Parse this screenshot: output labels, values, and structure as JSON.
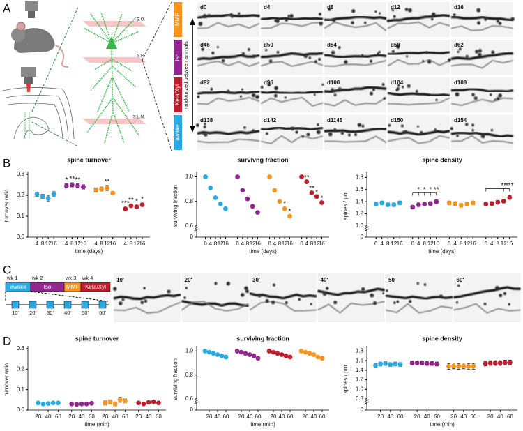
{
  "panel_labels": [
    "A",
    "B",
    "C",
    "D"
  ],
  "panel_a": {
    "layers": [
      "S.O.",
      "S.R.",
      "S.L.M."
    ],
    "conditions": [
      {
        "label": "MMF",
        "color": "#f7941d"
      },
      {
        "label": "Iso",
        "color": "#92278f"
      },
      {
        "label": "Keta/Xyl",
        "color": "#be1e2d"
      },
      {
        "label": "awake",
        "color": "#29abe2"
      }
    ],
    "arrow_label": "randomized between animals",
    "image_labels": [
      [
        "d0",
        "d4",
        "d8",
        "d12",
        "d16"
      ],
      [
        "d46",
        "d50",
        "d54",
        "d58",
        "d62"
      ],
      [
        "d92",
        "d96",
        "d100",
        "d104",
        "d108"
      ],
      [
        "d138",
        "d142",
        "d1146",
        "d150",
        "d154"
      ]
    ]
  },
  "panel_c": {
    "weeks": [
      "wk 1",
      "wk 2",
      "wk 3",
      "wk 4"
    ],
    "conditions": [
      {
        "label": "awake",
        "color": "#29abe2"
      },
      {
        "label": "Iso",
        "color": "#92278f"
      },
      {
        "label": "MMF",
        "color": "#f7941d"
      },
      {
        "label": "Keta/Xyl",
        "color": "#be1e2d"
      }
    ],
    "timepoints": [
      "10'",
      "20'",
      "30'",
      "40'",
      "50'",
      "60'"
    ],
    "image_labels": [
      "10'",
      "20'",
      "30'",
      "40'",
      "50'",
      "60'"
    ]
  },
  "chart_data": [
    {
      "type": "scatter",
      "title": "spine turnover",
      "ylabel": "turnover ratio",
      "xlabel": "time (days)",
      "x": [
        4,
        8,
        12,
        16
      ],
      "xticks": [
        4,
        8,
        12,
        16
      ],
      "xlim": [
        2,
        18
      ],
      "ylim": [
        0,
        0.3
      ],
      "yticks": [
        {
          "value": 0,
          "label": "0.0"
        },
        0.1,
        0.2,
        0.3
      ],
      "series": [
        {
          "color": "#29abe2",
          "values": [
            0.205,
            0.195,
            0.185,
            0.205
          ],
          "errors": [
            0.01,
            0.01,
            0.015,
            0.012
          ]
        },
        {
          "color": "#92278f",
          "values": [
            0.245,
            0.25,
            0.245,
            0.24
          ],
          "errors": [
            0.01,
            0.01,
            0.01,
            0.01
          ],
          "significance": [
            "*",
            "**",
            "**",
            null
          ]
        },
        {
          "color": "#f7941d",
          "values": [
            0.225,
            0.23,
            0.235,
            0.21
          ],
          "errors": [
            0.01,
            0.01,
            0.012,
            0.008
          ],
          "significance": [
            null,
            null,
            "**",
            null
          ]
        },
        {
          "color": "#be1e2d",
          "values": [
            0.135,
            0.15,
            0.145,
            0.155
          ],
          "errors": [
            0.008,
            0.008,
            0.008,
            0.008
          ],
          "significance": [
            "***",
            "**",
            "*",
            "*"
          ]
        }
      ]
    },
    {
      "type": "scatter",
      "title": "survivng fraction",
      "ylabel": "surviving fraction",
      "xlabel": "time (days)",
      "x": [
        0,
        4,
        8,
        12,
        16
      ],
      "xticks": [
        0,
        4,
        8,
        12,
        16
      ],
      "xlim": [
        -2,
        18
      ],
      "ylim": [
        0.6,
        1.02
      ],
      "yticks": [
        0.6,
        0.8,
        {
          "value": 1,
          "label": "1.0"
        }
      ],
      "break_tick": 0,
      "series": [
        {
          "color": "#29abe2",
          "values": [
            1.0,
            0.91,
            0.83,
            0.78,
            0.74
          ],
          "errors": [
            0,
            0.005,
            0.005,
            0.006,
            0.008
          ]
        },
        {
          "color": "#92278f",
          "values": [
            1.0,
            0.89,
            0.82,
            0.76,
            0.71
          ],
          "errors": [
            0,
            0.005,
            0.005,
            0.005,
            0.005
          ]
        },
        {
          "color": "#f7941d",
          "values": [
            1.0,
            0.89,
            0.8,
            0.74,
            0.68
          ],
          "errors": [
            0,
            0.01,
            0.01,
            0.01,
            0.01
          ],
          "significance": [
            null,
            null,
            null,
            "*",
            "*"
          ]
        },
        {
          "color": "#be1e2d",
          "values": [
            1.0,
            0.96,
            0.87,
            0.84,
            0.79
          ],
          "errors": [
            0,
            0.005,
            0.005,
            0.005,
            0.005
          ],
          "significance": [
            null,
            "**",
            "**",
            "*",
            "*"
          ]
        }
      ]
    },
    {
      "type": "scatter",
      "title": "spine density",
      "ylabel": "spines / µm",
      "xlabel": "time (days)",
      "x": [
        0,
        4,
        8,
        12,
        16
      ],
      "xticks": [
        0,
        4,
        8,
        12,
        16
      ],
      "xlim": [
        -2,
        18
      ],
      "ylim": [
        1.0,
        1.85
      ],
      "yticks": [
        {
          "value": 1,
          "label": "1.0"
        },
        1.2,
        1.4,
        1.6,
        1.8
      ],
      "break_tick": 0,
      "brackets": true,
      "series": [
        {
          "color": "#29abe2",
          "values": [
            1.36,
            1.38,
            1.35,
            1.35,
            1.38
          ],
          "errors": [
            0.03,
            0.03,
            0.03,
            0.03,
            0.03
          ]
        },
        {
          "color": "#92278f",
          "values": [
            1.31,
            1.35,
            1.36,
            1.37,
            1.4
          ],
          "errors": [
            0.03,
            0.03,
            0.03,
            0.03,
            0.03
          ],
          "significance": [
            null,
            "*",
            "*",
            "*",
            "**"
          ]
        },
        {
          "color": "#f7941d",
          "values": [
            1.38,
            1.37,
            1.34,
            1.36,
            1.38
          ],
          "errors": [
            0.03,
            0.03,
            0.03,
            0.03,
            0.03
          ]
        },
        {
          "color": "#be1e2d",
          "values": [
            1.36,
            1.37,
            1.39,
            1.41,
            1.47
          ],
          "errors": [
            0.03,
            0.03,
            0.03,
            0.03,
            0.03
          ],
          "significance": [
            null,
            null,
            null,
            "**",
            "***"
          ]
        }
      ]
    },
    {
      "type": "scatter",
      "title": "spine turnover",
      "ylabel": "turnover ratio",
      "xlabel": "time (min)",
      "x": [
        20,
        30,
        40,
        50,
        60
      ],
      "xticks": [
        20,
        40,
        60
      ],
      "xlim": [
        12,
        65
      ],
      "ylim": [
        0,
        0.3
      ],
      "yticks": [
        {
          "value": 0,
          "label": "0.0"
        },
        0.1,
        0.2,
        0.3
      ],
      "series": [
        {
          "color": "#29abe2",
          "values": [
            0.035,
            0.03,
            0.032,
            0.035,
            0.035
          ],
          "errors": [
            0.005,
            0.005,
            0.005,
            0.005,
            0.005
          ]
        },
        {
          "color": "#92278f",
          "values": [
            0.03,
            0.028,
            0.03,
            0.03,
            0.033
          ],
          "errors": [
            0.005,
            0.005,
            0.005,
            0.005,
            0.005
          ]
        },
        {
          "color": "#f7941d",
          "values": [
            0.035,
            0.04,
            0.03,
            0.05,
            0.045
          ],
          "errors": [
            0.01,
            0.01,
            0.01,
            0.012,
            0.01
          ]
        },
        {
          "color": "#be1e2d",
          "values": [
            0.035,
            0.03,
            0.038,
            0.04,
            0.035
          ],
          "errors": [
            0.005,
            0.005,
            0.005,
            0.005,
            0.005
          ]
        }
      ]
    },
    {
      "type": "scatter",
      "title": "surviving fraction",
      "ylabel": "surviving fraction",
      "xlabel": "time (min)",
      "x": [
        10,
        20,
        30,
        40,
        50,
        60
      ],
      "xticks": [
        20,
        40,
        60
      ],
      "xlim": [
        5,
        65
      ],
      "ylim": [
        0.6,
        1.02
      ],
      "yticks": [
        0.6,
        0.8,
        {
          "value": 1,
          "label": "1.0"
        }
      ],
      "break_tick": 0,
      "series": [
        {
          "color": "#29abe2",
          "values": [
            1.0,
            0.99,
            0.98,
            0.97,
            0.96,
            0.95
          ],
          "errors": [
            0,
            0.003,
            0.003,
            0.003,
            0.003,
            0.003
          ]
        },
        {
          "color": "#92278f",
          "values": [
            1.0,
            0.99,
            0.98,
            0.97,
            0.96,
            0.94
          ],
          "errors": [
            0,
            0.003,
            0.003,
            0.003,
            0.003,
            0.003
          ]
        },
        {
          "color": "#be1e2d",
          "values": [
            1.0,
            0.99,
            0.98,
            0.97,
            0.96,
            0.95
          ],
          "errors": [
            0,
            0.003,
            0.003,
            0.003,
            0.003,
            0.003
          ]
        },
        {
          "color": "#f7941d",
          "values": [
            1.0,
            0.99,
            0.98,
            0.97,
            0.95,
            0.94
          ],
          "errors": [
            0,
            0.003,
            0.003,
            0.003,
            0.003,
            0.003
          ]
        }
      ]
    },
    {
      "type": "scatter",
      "title": "spine density",
      "ylabel": "spines / µm",
      "xlabel": "time (min)",
      "x": [
        10,
        20,
        30,
        40,
        50,
        60
      ],
      "xticks": [
        20,
        40,
        60
      ],
      "xlim": [
        5,
        65
      ],
      "ylim": [
        0.8,
        1.85
      ],
      "yticks": [
        0.8,
        {
          "value": 1,
          "label": "1.0"
        },
        1.2,
        1.4,
        1.6,
        1.8
      ],
      "break_tick": 0,
      "series": [
        {
          "color": "#29abe2",
          "values": [
            1.5,
            1.53,
            1.54,
            1.52,
            1.53,
            1.52
          ],
          "errors": [
            0.04,
            0.04,
            0.04,
            0.04,
            0.04,
            0.04
          ]
        },
        {
          "color": "#92278f",
          "values": [
            1.55,
            1.55,
            1.55,
            1.54,
            1.54,
            1.53
          ],
          "errors": [
            0.04,
            0.04,
            0.04,
            0.04,
            0.04,
            0.04
          ]
        },
        {
          "color": "#f7941d",
          "values": [
            1.48,
            1.49,
            1.48,
            1.49,
            1.48,
            1.48
          ],
          "errors": [
            0.06,
            0.06,
            0.06,
            0.06,
            0.06,
            0.06
          ]
        },
        {
          "color": "#be1e2d",
          "values": [
            1.54,
            1.55,
            1.55,
            1.55,
            1.56,
            1.56
          ],
          "errors": [
            0.05,
            0.05,
            0.05,
            0.05,
            0.05,
            0.05
          ]
        }
      ]
    }
  ]
}
